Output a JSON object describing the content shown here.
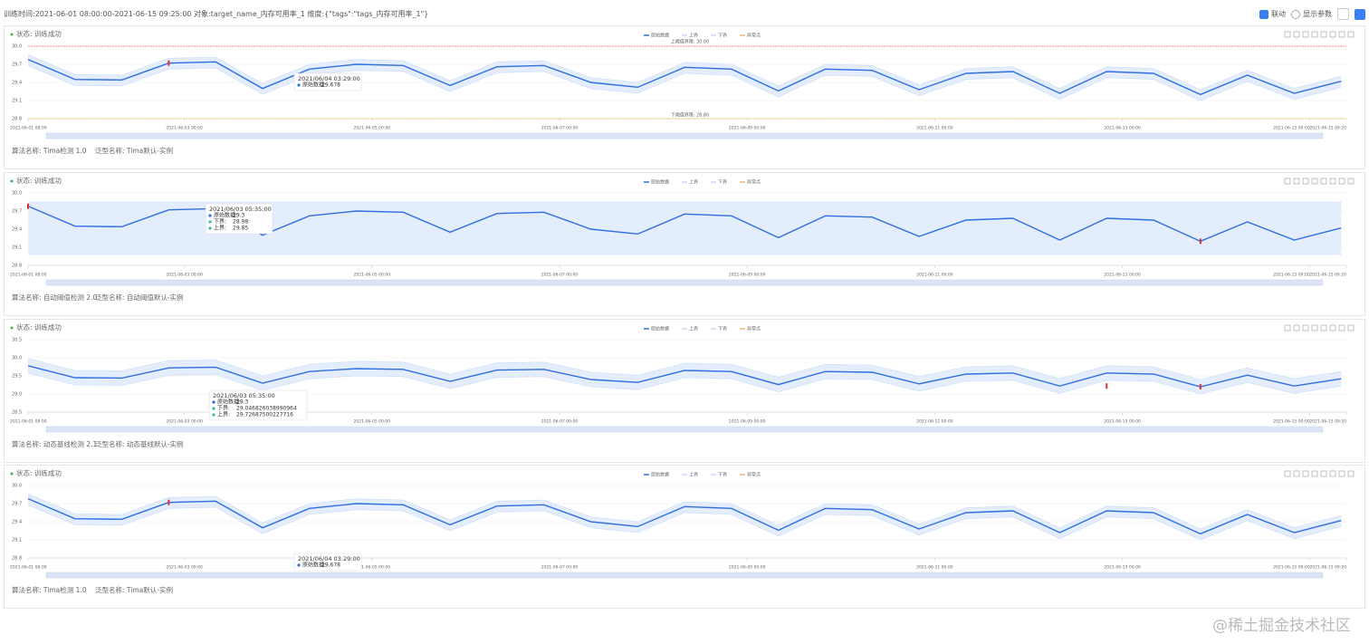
{
  "header": {
    "title": "训练时间:2021-06-01 08:00:00-2021-06-15 09:25:00 对象:target_name_内存可用率_1 维度:{\"tags\":\"tags_内存可用率_1\"}",
    "link_label": "联动",
    "params_label": "显示参数"
  },
  "watermark": "@稀土掘金技术社区",
  "chart_data": [
    {
      "type": "line",
      "status": "状态: 训练成功",
      "x": [
        "2021-06-01 08:00",
        "2021-06-01 20:00",
        "2021-06-02 08:00",
        "2021-06-02 20:00",
        "2021-06-03 08:00",
        "2021-06-03 20:00",
        "2021-06-04 08:00",
        "2021-06-04 20:00",
        "2021-06-05 08:00",
        "2021-06-05 20:00",
        "2021-06-06 08:00",
        "2021-06-06 20:00",
        "2021-06-07 08:00",
        "2021-06-07 20:00",
        "2021-06-08 08:00",
        "2021-06-08 20:00",
        "2021-06-09 08:00",
        "2021-06-09 20:00",
        "2021-06-10 08:00",
        "2021-06-10 20:00",
        "2021-06-11 08:00",
        "2021-06-11 20:00",
        "2021-06-12 08:00",
        "2021-06-12 20:00",
        "2021-06-13 08:00",
        "2021-06-13 20:00",
        "2021-06-14 08:00",
        "2021-06-14 20:00",
        "2021-06-15 08:00"
      ],
      "xlim": [
        "2021-06-01 08:00",
        "2021-06-15 09:20"
      ],
      "xticks": [
        "2021-06-01 08:00",
        "2021-06-03 00:00",
        "2021-06-05 00:00",
        "2021-06-07 00:00",
        "2021-06-09 00:00",
        "2021-06-11 00:00",
        "2021-06-13 00:00",
        "2021-06-15 00:00",
        "2021-06-15 09:20"
      ],
      "ylim": [
        28.8,
        30
      ],
      "yticks": [
        {
          "value": 30,
          "label": "30.0"
        },
        29.7,
        29.4,
        29.1,
        28.8
      ],
      "series": [
        {
          "name": "原始数据",
          "color": "#2f6fe0",
          "values": [
            29.78,
            29.45,
            29.44,
            29.72,
            29.74,
            29.3,
            29.62,
            29.7,
            29.68,
            29.35,
            29.66,
            29.68,
            29.4,
            29.32,
            29.65,
            29.62,
            29.26,
            29.62,
            29.6,
            29.28,
            29.55,
            29.58,
            29.22,
            29.58,
            29.55,
            29.2,
            29.52,
            29.22,
            29.42
          ]
        },
        {
          "name": "上界",
          "color": "#c9dcf7",
          "values": [
            29.86,
            29.53,
            29.52,
            29.8,
            29.82,
            29.38,
            29.7,
            29.78,
            29.76,
            29.43,
            29.74,
            29.76,
            29.48,
            29.4,
            29.73,
            29.7,
            29.34,
            29.7,
            29.68,
            29.36,
            29.63,
            29.66,
            29.3,
            29.66,
            29.63,
            29.28,
            29.6,
            29.3,
            29.5
          ]
        },
        {
          "name": "下界",
          "color": "#c9dcf7",
          "values": [
            29.68,
            29.35,
            29.34,
            29.62,
            29.64,
            29.2,
            29.52,
            29.6,
            29.58,
            29.25,
            29.56,
            29.58,
            29.3,
            29.22,
            29.55,
            29.52,
            29.16,
            29.52,
            29.5,
            29.18,
            29.45,
            29.48,
            29.12,
            29.48,
            29.45,
            29.1,
            29.42,
            29.12,
            29.32
          ]
        },
        {
          "name": "异常点",
          "color": "#f5b36b",
          "values": [
            null,
            null,
            null,
            29.72,
            null,
            null,
            null,
            null,
            null,
            null,
            null,
            null,
            null,
            null,
            null,
            null,
            null,
            null,
            null,
            null,
            null,
            null,
            null,
            null,
            null,
            null,
            null,
            null,
            null
          ]
        }
      ],
      "thresholds": [
        {
          "label": "上阈值界限: 30.00",
          "value": 30,
          "color": "#e66"
        },
        {
          "label": "下阈值界限: 28.80",
          "value": 28.8,
          "color": "#e6c25a"
        }
      ],
      "tooltip": {
        "title": "2021/06/04 03:29:00",
        "rows": [
          {
            "label": "原始数据:",
            "value": 29.678
          }
        ]
      },
      "algorithm": "算法名称: Tima检测 1.0",
      "generic": "泛型名称: Tima默认-实例"
    },
    {
      "type": "line",
      "status": "状态: 训练成功",
      "x": [
        "2021-06-01 08:00",
        "2021-06-01 20:00",
        "2021-06-02 08:00",
        "2021-06-02 20:00",
        "2021-06-03 08:00",
        "2021-06-03 20:00",
        "2021-06-04 08:00",
        "2021-06-04 20:00",
        "2021-06-05 08:00",
        "2021-06-05 20:00",
        "2021-06-06 08:00",
        "2021-06-06 20:00",
        "2021-06-07 08:00",
        "2021-06-07 20:00",
        "2021-06-08 08:00",
        "2021-06-08 20:00",
        "2021-06-09 08:00",
        "2021-06-09 20:00",
        "2021-06-10 08:00",
        "2021-06-10 20:00",
        "2021-06-11 08:00",
        "2021-06-11 20:00",
        "2021-06-12 08:00",
        "2021-06-12 20:00",
        "2021-06-13 08:00",
        "2021-06-13 20:00",
        "2021-06-14 08:00",
        "2021-06-14 20:00",
        "2021-06-15 08:00"
      ],
      "xlim": [
        "2021-06-01 08:00",
        "2021-06-15 09:20"
      ],
      "xticks": [
        "2021-06-01 08:00",
        "2021-06-03 00:00",
        "2021-06-05 00:00",
        "2021-06-07 00:00",
        "2021-06-09 00:00",
        "2021-06-11 00:00",
        "2021-06-13 00:00",
        "2021-06-15 00:00",
        "2021-06-15 09:20"
      ],
      "ylim": [
        28.8,
        30
      ],
      "yticks": [
        {
          "value": 30,
          "label": "30.0"
        },
        29.7,
        29.4,
        29.1,
        28.8
      ],
      "series": [
        {
          "name": "原始数据",
          "color": "#2f6fe0",
          "values": [
            29.78,
            29.45,
            29.44,
            29.72,
            29.74,
            29.3,
            29.62,
            29.7,
            29.68,
            29.35,
            29.66,
            29.68,
            29.4,
            29.32,
            29.65,
            29.62,
            29.26,
            29.62,
            29.6,
            29.28,
            29.55,
            29.58,
            29.22,
            29.58,
            29.55,
            29.2,
            29.52,
            29.22,
            29.42
          ]
        },
        {
          "name": "上界",
          "color": "#c9dcf7",
          "values": [
            29.85,
            29.85,
            29.85,
            29.85,
            29.85,
            29.85,
            29.85,
            29.85,
            29.85,
            29.85,
            29.85,
            29.85,
            29.85,
            29.85,
            29.85,
            29.85,
            29.85,
            29.85,
            29.85,
            29.85,
            29.85,
            29.85,
            29.85,
            29.85,
            29.85,
            29.85,
            29.85,
            29.85,
            29.85
          ]
        },
        {
          "name": "下界",
          "color": "#c9dcf7",
          "values": [
            28.98,
            28.98,
            28.98,
            28.98,
            28.98,
            28.98,
            28.98,
            28.98,
            28.98,
            28.98,
            28.98,
            28.98,
            28.98,
            28.98,
            28.98,
            28.98,
            28.98,
            28.98,
            28.98,
            28.98,
            28.98,
            28.98,
            28.98,
            28.98,
            28.98,
            28.98,
            28.98,
            28.98,
            28.98
          ]
        },
        {
          "name": "异常点",
          "color": "#f5b36b",
          "values": [
            29.78,
            null,
            null,
            null,
            null,
            null,
            null,
            null,
            null,
            null,
            null,
            null,
            null,
            null,
            null,
            null,
            null,
            null,
            null,
            null,
            null,
            null,
            null,
            null,
            null,
            29.2,
            null,
            null,
            null
          ]
        }
      ],
      "tooltip": {
        "title": "2021/06/03 05:35:00",
        "rows": [
          {
            "label": "原始数据:",
            "value": 29.3
          },
          {
            "label": "下界:",
            "value": 28.98
          },
          {
            "label": "上界:",
            "value": 29.85
          }
        ]
      },
      "algorithm": "算法名称: 自动阈值检测 2.0",
      "generic": "泛型名称: 自动阈值默认-实例"
    },
    {
      "type": "line",
      "status": "状态: 训练成功",
      "x": [
        "2021-06-01 08:00",
        "2021-06-01 20:00",
        "2021-06-02 08:00",
        "2021-06-02 20:00",
        "2021-06-03 08:00",
        "2021-06-03 20:00",
        "2021-06-04 08:00",
        "2021-06-04 20:00",
        "2021-06-05 08:00",
        "2021-06-05 20:00",
        "2021-06-06 08:00",
        "2021-06-06 20:00",
        "2021-06-07 08:00",
        "2021-06-07 20:00",
        "2021-06-08 08:00",
        "2021-06-08 20:00",
        "2021-06-09 08:00",
        "2021-06-09 20:00",
        "2021-06-10 08:00",
        "2021-06-10 20:00",
        "2021-06-11 08:00",
        "2021-06-11 20:00",
        "2021-06-12 08:00",
        "2021-06-12 20:00",
        "2021-06-13 08:00",
        "2021-06-13 20:00",
        "2021-06-14 08:00",
        "2021-06-14 20:00",
        "2021-06-15 08:00"
      ],
      "xlim": [
        "2021-06-01 08:00",
        "2021-06-15 09:20"
      ],
      "xticks": [
        "2021-06-01 08:00",
        "2021-06-03 00:00",
        "2021-06-05 00:00",
        "2021-06-07 00:00",
        "2021-06-09 00:00",
        "2021-06-11 00:00",
        "2021-06-13 00:00",
        "2021-06-15 00:00",
        "2021-06-15 09:20"
      ],
      "ylim": [
        28.5,
        30.5
      ],
      "yticks": [
        30.5,
        {
          "value": 30,
          "label": "30.0"
        },
        29.5,
        {
          "value": 29,
          "label": "29.0"
        },
        28.5
      ],
      "series": [
        {
          "name": "原始数据",
          "color": "#2f6fe0",
          "values": [
            29.78,
            29.45,
            29.44,
            29.72,
            29.74,
            29.3,
            29.62,
            29.7,
            29.68,
            29.35,
            29.66,
            29.68,
            29.4,
            29.32,
            29.65,
            29.62,
            29.26,
            29.62,
            29.6,
            29.28,
            29.55,
            29.58,
            29.22,
            29.58,
            29.55,
            29.2,
            29.52,
            29.22,
            29.42
          ]
        },
        {
          "name": "上界",
          "color": "#c9dcf7",
          "values": [
            29.98,
            29.65,
            29.64,
            29.92,
            29.94,
            29.5,
            29.82,
            29.9,
            29.88,
            29.55,
            29.86,
            29.88,
            29.6,
            29.52,
            29.85,
            29.82,
            29.46,
            29.82,
            29.8,
            29.48,
            29.75,
            29.78,
            29.42,
            29.78,
            29.75,
            29.4,
            29.72,
            29.42,
            29.62
          ]
        },
        {
          "name": "下界",
          "color": "#c9dcf7",
          "values": [
            29.58,
            29.25,
            29.24,
            29.52,
            29.54,
            29.1,
            29.42,
            29.5,
            29.48,
            29.15,
            29.46,
            29.48,
            29.2,
            29.12,
            29.45,
            29.42,
            29.06,
            29.42,
            29.4,
            29.08,
            29.35,
            29.38,
            29.02,
            29.38,
            29.35,
            29.0,
            29.32,
            29.02,
            29.22
          ]
        },
        {
          "name": "异常点",
          "color": "#f5b36b",
          "values": [
            null,
            null,
            null,
            null,
            null,
            null,
            null,
            null,
            null,
            null,
            null,
            null,
            null,
            null,
            null,
            null,
            null,
            null,
            null,
            null,
            null,
            null,
            null,
            29.22,
            null,
            29.2,
            null,
            null,
            null
          ]
        }
      ],
      "tooltip": {
        "title": "2021/06/03 05:35:00",
        "rows": [
          {
            "label": "原始数据:",
            "value": 29.3
          },
          {
            "label": "下界:",
            "value": 29.046826038990964
          },
          {
            "label": "上界:",
            "value": 29.72687500227716
          }
        ]
      },
      "algorithm": "算法名称: 动态基线检测 2.1",
      "generic": "泛型名称: 动态基线默认-实例"
    },
    {
      "type": "line",
      "status": "状态: 训练成功",
      "x": [
        "2021-06-01 08:00",
        "2021-06-01 20:00",
        "2021-06-02 08:00",
        "2021-06-02 20:00",
        "2021-06-03 08:00",
        "2021-06-03 20:00",
        "2021-06-04 08:00",
        "2021-06-04 20:00",
        "2021-06-05 08:00",
        "2021-06-05 20:00",
        "2021-06-06 08:00",
        "2021-06-06 20:00",
        "2021-06-07 08:00",
        "2021-06-07 20:00",
        "2021-06-08 08:00",
        "2021-06-08 20:00",
        "2021-06-09 08:00",
        "2021-06-09 20:00",
        "2021-06-10 08:00",
        "2021-06-10 20:00",
        "2021-06-11 08:00",
        "2021-06-11 20:00",
        "2021-06-12 08:00",
        "2021-06-12 20:00",
        "2021-06-13 08:00",
        "2021-06-13 20:00",
        "2021-06-14 08:00",
        "2021-06-14 20:00",
        "2021-06-15 08:00"
      ],
      "xlim": [
        "2021-06-01 08:00",
        "2021-06-15 09:20"
      ],
      "xticks": [
        "2021-06-01 08:00",
        "2021-06-03 00:00",
        "2021-06-05 00:00",
        "2021-06-07 00:00",
        "2021-06-09 00:00",
        "2021-06-11 00:00",
        "2021-06-13 00:00",
        "2021-06-15 00:00",
        "2021-06-15 09:20"
      ],
      "ylim": [
        28.8,
        30
      ],
      "yticks": [
        {
          "value": 30,
          "label": "30.0"
        },
        29.7,
        29.4,
        29.1,
        28.8
      ],
      "series": [
        {
          "name": "原始数据",
          "color": "#2f6fe0",
          "values": [
            29.78,
            29.45,
            29.44,
            29.72,
            29.74,
            29.3,
            29.62,
            29.7,
            29.68,
            29.35,
            29.66,
            29.68,
            29.4,
            29.32,
            29.65,
            29.62,
            29.26,
            29.62,
            29.6,
            29.28,
            29.55,
            29.58,
            29.22,
            29.58,
            29.55,
            29.2,
            29.52,
            29.22,
            29.42
          ]
        },
        {
          "name": "上界",
          "color": "#c9dcf7",
          "values": [
            29.86,
            29.53,
            29.52,
            29.8,
            29.82,
            29.38,
            29.7,
            29.78,
            29.76,
            29.43,
            29.74,
            29.76,
            29.48,
            29.4,
            29.73,
            29.7,
            29.34,
            29.7,
            29.68,
            29.36,
            29.63,
            29.66,
            29.3,
            29.66,
            29.63,
            29.28,
            29.6,
            29.3,
            29.5
          ]
        },
        {
          "name": "下界",
          "color": "#c9dcf7",
          "values": [
            29.68,
            29.35,
            29.34,
            29.62,
            29.64,
            29.2,
            29.52,
            29.6,
            29.58,
            29.25,
            29.56,
            29.58,
            29.3,
            29.22,
            29.55,
            29.52,
            29.16,
            29.52,
            29.5,
            29.18,
            29.45,
            29.48,
            29.12,
            29.48,
            29.45,
            29.1,
            29.42,
            29.12,
            29.32
          ]
        },
        {
          "name": "异常点",
          "color": "#f5b36b",
          "values": [
            null,
            null,
            null,
            29.72,
            null,
            null,
            null,
            null,
            null,
            null,
            null,
            null,
            null,
            null,
            null,
            null,
            null,
            null,
            null,
            null,
            null,
            null,
            null,
            null,
            null,
            null,
            null,
            null,
            null
          ]
        }
      ],
      "tooltip": {
        "title": "2021/06/04 03:29:00",
        "rows": [
          {
            "label": "原始数据:",
            "value": 29.678
          }
        ]
      },
      "algorithm": "算法名称: Tima检测 1.0",
      "generic": "泛型名称: Tima默认-实例"
    }
  ]
}
